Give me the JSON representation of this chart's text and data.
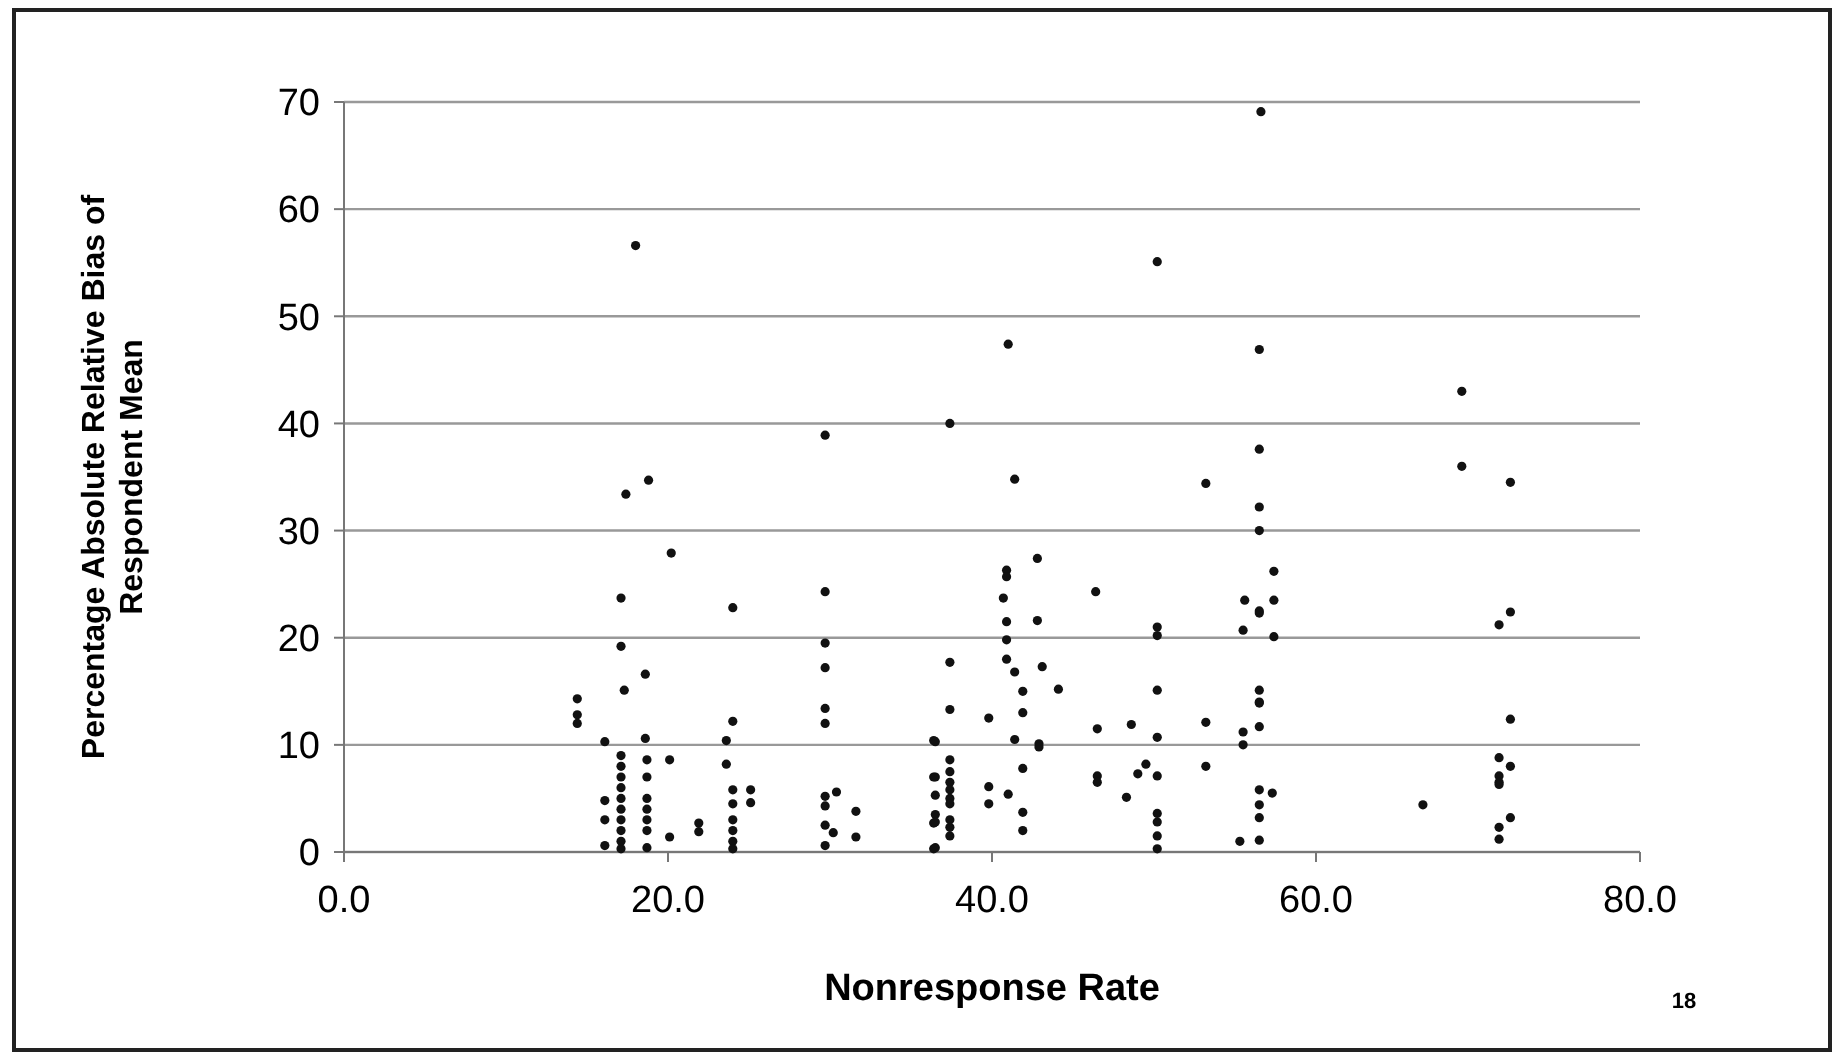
{
  "chart_data": {
    "type": "scatter",
    "xlabel": "Nonresponse Rate",
    "ylabel": "Percentage Absolute Relative Bias of Respondent Mean",
    "annotations": [
      "18"
    ],
    "xlim": [
      0,
      80
    ],
    "xticks": [
      {
        "value": 0,
        "label": "0.0"
      },
      {
        "value": 20,
        "label": "20.0"
      },
      {
        "value": 40,
        "label": "40.0"
      },
      {
        "value": 60,
        "label": "60.0"
      },
      {
        "value": 80,
        "label": "80.0"
      }
    ],
    "ylim": [
      0,
      70
    ],
    "yticks": [
      0,
      10,
      20,
      30,
      40,
      50,
      60,
      70
    ],
    "grid": "y",
    "marker": "circle",
    "series": [
      {
        "color": "#111111",
        "x": [
          18.0,
          29.7,
          17.4,
          18.8,
          20.2,
          17.1,
          24.0,
          29.7,
          17.1,
          29.7,
          29.7,
          18.6,
          17.3,
          14.4,
          14.4,
          14.4,
          29.7,
          29.7,
          24.0,
          16.1,
          18.6,
          23.6,
          20.1,
          23.6,
          36.4,
          36.4,
          17.1,
          17.1,
          17.1,
          17.1,
          17.1,
          17.1,
          17.1,
          17.1,
          17.1,
          17.1,
          18.7,
          18.7,
          18.7,
          18.7,
          18.7,
          18.7,
          18.7,
          16.1,
          16.1,
          16.1,
          20.1,
          21.9,
          21.9,
          24.0,
          24.0,
          24.0,
          24.0,
          24.0,
          24.0,
          25.1,
          25.1,
          29.7,
          29.7,
          29.7,
          29.7,
          30.4,
          30.2,
          31.6,
          31.6,
          36.4,
          36.4,
          50.2,
          41.0,
          37.4,
          41.4,
          42.8,
          40.9,
          40.9,
          40.7,
          40.9,
          42.8,
          46.4,
          50.2,
          50.2,
          40.9,
          40.9,
          41.4,
          43.1,
          37.4,
          41.9,
          44.1,
          50.2,
          37.4,
          41.9,
          39.8,
          46.5,
          48.6,
          50.2,
          41.4,
          42.9,
          42.9,
          36.5,
          49.5,
          41.9,
          37.4,
          37.4,
          37.4,
          37.4,
          37.4,
          37.4,
          37.4,
          37.4,
          37.4,
          36.5,
          36.5,
          36.5,
          36.5,
          36.5,
          46.5,
          46.5,
          49.0,
          50.2,
          50.2,
          50.2,
          50.2,
          50.2,
          48.3,
          39.8,
          39.8,
          41.0,
          41.9,
          41.9,
          56.6,
          56.5,
          69.0,
          56.5,
          53.2,
          69.0,
          72.0,
          56.5,
          56.5,
          57.4,
          55.6,
          57.4,
          56.5,
          56.5,
          55.5,
          57.4,
          72.0,
          71.3,
          56.5,
          56.5,
          56.5,
          53.2,
          72.0,
          55.5,
          55.5,
          56.5,
          53.2,
          71.3,
          72.0,
          71.3,
          71.3,
          71.3,
          56.5,
          57.3,
          56.5,
          56.5,
          66.6,
          72.0,
          71.3,
          71.3,
          55.3,
          56.5
        ],
        "values": [
          56.6,
          38.9,
          33.4,
          34.7,
          27.9,
          23.7,
          22.8,
          24.3,
          19.2,
          19.5,
          17.2,
          16.6,
          15.1,
          14.3,
          12.8,
          12.0,
          13.4,
          12.0,
          12.2,
          10.3,
          10.6,
          10.4,
          8.6,
          8.2,
          10.4,
          7.0,
          0.3,
          1.0,
          2.0,
          3.0,
          4.0,
          5.0,
          6.0,
          7.0,
          8.0,
          9.0,
          8.6,
          7.0,
          5.0,
          4.0,
          3.0,
          2.0,
          0.4,
          4.8,
          3.0,
          0.6,
          1.4,
          2.7,
          1.9,
          5.8,
          4.5,
          3.0,
          2.0,
          1.0,
          0.3,
          5.8,
          4.6,
          5.2,
          4.3,
          2.5,
          0.6,
          5.6,
          1.8,
          3.8,
          1.4,
          2.7,
          0.3,
          55.1,
          47.4,
          40.0,
          34.8,
          27.4,
          26.3,
          25.7,
          23.7,
          21.5,
          21.6,
          24.3,
          21.0,
          20.2,
          19.8,
          18.0,
          16.8,
          17.3,
          17.7,
          15.0,
          15.2,
          15.1,
          13.3,
          13.0,
          12.5,
          11.5,
          11.9,
          10.7,
          10.5,
          10.1,
          9.8,
          10.3,
          8.2,
          7.8,
          8.6,
          7.5,
          6.5,
          5.8,
          5.0,
          4.5,
          3.0,
          2.3,
          1.5,
          7.0,
          5.3,
          3.5,
          2.8,
          0.4,
          7.1,
          6.5,
          7.3,
          7.1,
          3.6,
          2.8,
          1.5,
          0.3,
          5.1,
          6.1,
          4.5,
          5.4,
          3.7,
          2.0,
          69.1,
          46.9,
          43.0,
          37.6,
          34.4,
          36.0,
          34.5,
          32.2,
          30.0,
          26.2,
          23.5,
          23.5,
          22.5,
          22.3,
          20.7,
          20.1,
          22.4,
          21.2,
          15.1,
          14.0,
          13.9,
          12.1,
          12.4,
          11.2,
          10.0,
          11.7,
          8.0,
          8.8,
          8.0,
          7.1,
          6.5,
          6.3,
          5.8,
          5.5,
          4.4,
          3.2,
          4.4,
          3.2,
          2.3,
          1.2,
          1.0,
          1.1
        ]
      }
    ]
  }
}
